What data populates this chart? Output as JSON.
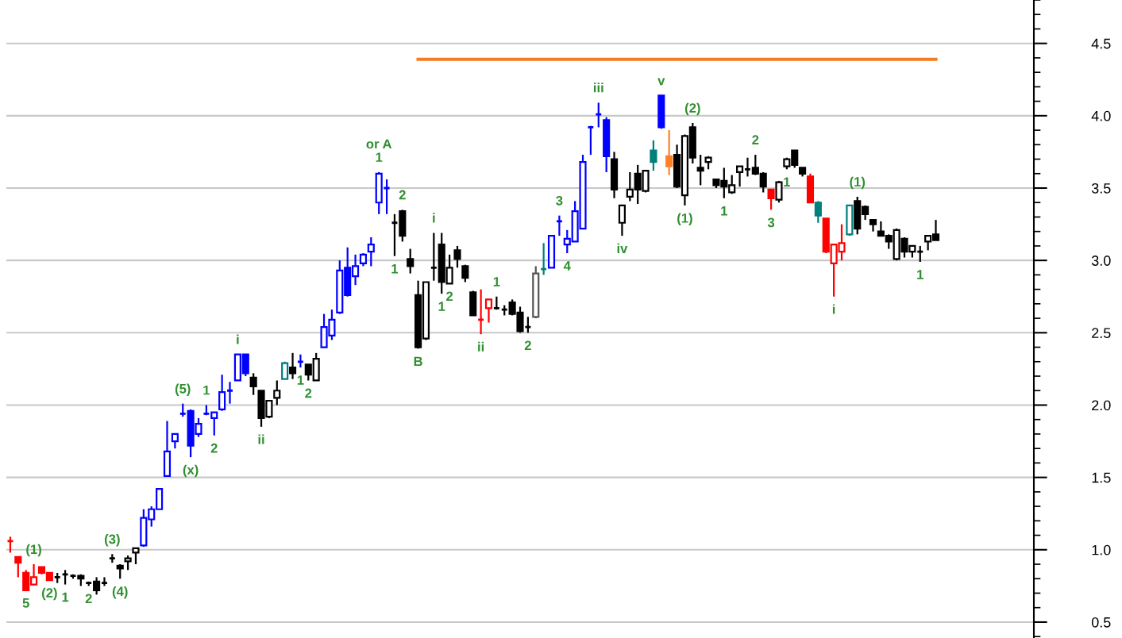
{
  "chart_data": {
    "type": "candlestick",
    "categories": [
      null,
      null,
      null,
      null,
      null,
      null,
      null,
      null,
      null,
      null,
      null,
      null,
      null,
      null,
      null,
      null,
      null,
      null,
      null,
      null,
      null,
      null,
      null,
      null,
      null,
      null,
      null,
      null,
      null,
      null,
      null,
      null,
      null,
      null,
      null,
      null,
      null,
      null,
      null,
      null,
      null,
      null,
      null,
      null,
      null,
      null,
      null,
      null,
      null,
      null,
      null,
      null,
      null,
      null,
      null,
      null,
      null,
      null,
      null,
      null,
      null,
      null,
      null,
      null,
      null,
      null,
      null,
      null,
      null,
      null,
      null,
      null,
      null,
      null,
      null,
      null,
      null,
      null,
      null,
      null,
      null,
      null,
      null,
      null,
      null,
      null,
      null,
      null,
      null,
      null,
      null,
      null,
      null,
      null,
      null,
      null,
      null,
      null,
      null,
      null,
      null,
      null,
      null,
      null,
      null,
      null,
      null,
      null,
      null,
      null,
      null,
      null,
      null,
      null,
      null,
      null,
      null,
      null,
      null,
      null,
      null,
      null,
      null,
      null,
      null,
      null,
      null,
      null,
      null,
      null,
      null
    ],
    "ohlc": [
      [
        1.06,
        1.09,
        0.98,
        1.06
      ],
      [
        0.95,
        0.95,
        0.81,
        0.91
      ],
      [
        0.84,
        0.86,
        0.72,
        0.72
      ],
      [
        0.76,
        0.9,
        0.76,
        0.81
      ],
      [
        0.88,
        0.88,
        0.83,
        0.84
      ],
      [
        0.84,
        0.84,
        0.79,
        0.79
      ],
      [
        0.81,
        0.84,
        0.77,
        0.81
      ],
      [
        0.83,
        0.86,
        0.76,
        0.83
      ],
      [
        0.82,
        0.83,
        0.8,
        0.82
      ],
      [
        0.82,
        0.83,
        0.75,
        0.8
      ],
      [
        0.77,
        0.78,
        0.75,
        0.77
      ],
      [
        0.78,
        0.81,
        0.69,
        0.72
      ],
      [
        0.77,
        0.81,
        0.75,
        0.77
      ],
      [
        0.94,
        0.97,
        0.91,
        0.94
      ],
      [
        0.89,
        0.9,
        0.8,
        0.87
      ],
      [
        0.92,
        0.96,
        0.86,
        0.94
      ],
      [
        0.98,
        1.01,
        0.9,
        1.01
      ],
      [
        1.03,
        1.28,
        1.02,
        1.22
      ],
      [
        1.21,
        1.3,
        1.16,
        1.28
      ],
      [
        1.28,
        1.42,
        1.28,
        1.42
      ],
      [
        1.51,
        1.89,
        1.51,
        1.68
      ],
      [
        1.75,
        1.8,
        1.7,
        1.8
      ],
      [
        1.94,
        2.01,
        1.92,
        1.94
      ],
      [
        1.96,
        1.97,
        1.64,
        1.72
      ],
      [
        1.8,
        1.91,
        1.78,
        1.87
      ],
      [
        1.94,
        2.0,
        1.93,
        1.94
      ],
      [
        1.91,
        1.95,
        1.79,
        1.95
      ],
      [
        1.97,
        2.21,
        1.96,
        2.09
      ],
      [
        2.1,
        2.16,
        2.01,
        2.1
      ],
      [
        2.17,
        2.35,
        2.17,
        2.35
      ],
      [
        2.35,
        2.35,
        2.2,
        2.22
      ],
      [
        2.19,
        2.22,
        2.07,
        2.13
      ],
      [
        2.1,
        2.1,
        1.85,
        1.91
      ],
      [
        1.92,
        2.03,
        1.91,
        2.03
      ],
      [
        2.05,
        2.17,
        2.0,
        2.1
      ],
      [
        2.18,
        2.3,
        2.18,
        2.29
      ],
      [
        2.26,
        2.36,
        2.18,
        2.22
      ],
      [
        2.3,
        2.35,
        2.26,
        2.3
      ],
      [
        2.28,
        2.28,
        2.17,
        2.21
      ],
      [
        2.17,
        2.36,
        2.17,
        2.32
      ],
      [
        2.4,
        2.63,
        2.4,
        2.54
      ],
      [
        2.48,
        2.66,
        2.45,
        2.59
      ],
      [
        2.64,
        3.0,
        2.63,
        2.93
      ],
      [
        2.95,
        3.09,
        2.75,
        2.76
      ],
      [
        2.89,
        3.04,
        2.83,
        2.96
      ],
      [
        2.98,
        3.05,
        2.96,
        3.04
      ],
      [
        3.06,
        3.16,
        2.96,
        3.11
      ],
      [
        3.4,
        3.61,
        3.32,
        3.6
      ],
      [
        3.5,
        3.56,
        3.32,
        3.5
      ],
      [
        3.26,
        3.32,
        3.03,
        3.26
      ],
      [
        3.34,
        3.35,
        3.13,
        3.17
      ],
      [
        3.01,
        3.08,
        2.91,
        2.96
      ],
      [
        2.76,
        2.86,
        2.39,
        2.4
      ],
      [
        2.46,
        2.85,
        2.45,
        2.85
      ],
      [
        2.95,
        3.19,
        2.86,
        2.95
      ],
      [
        3.11,
        3.19,
        2.77,
        2.85
      ],
      [
        2.84,
        3.04,
        2.84,
        2.95
      ],
      [
        3.07,
        3.1,
        2.95,
        3.01
      ],
      [
        2.96,
        2.97,
        2.85,
        2.88
      ],
      [
        2.78,
        2.79,
        2.62,
        2.62
      ],
      [
        2.59,
        2.8,
        2.49,
        2.59
      ],
      [
        2.67,
        2.73,
        2.57,
        2.73
      ],
      [
        2.67,
        2.75,
        2.66,
        2.67
      ],
      [
        2.66,
        2.69,
        2.62,
        2.66
      ],
      [
        2.71,
        2.73,
        2.62,
        2.63
      ],
      [
        2.64,
        2.68,
        2.5,
        2.51
      ],
      [
        2.54,
        2.61,
        2.5,
        2.54
      ],
      [
        2.61,
        2.96,
        2.6,
        2.91
      ],
      [
        2.94,
        3.12,
        2.9,
        2.94
      ],
      [
        2.95,
        3.17,
        2.95,
        3.17
      ],
      [
        3.27,
        3.31,
        3.17,
        3.27
      ],
      [
        3.11,
        3.21,
        3.05,
        3.15
      ],
      [
        3.13,
        3.41,
        3.13,
        3.34
      ],
      [
        3.22,
        3.73,
        3.22,
        3.68
      ],
      [
        3.92,
        3.93,
        3.73,
        3.92
      ],
      [
        4.01,
        4.09,
        3.92,
        4.01
      ],
      [
        3.97,
        3.99,
        3.61,
        3.72
      ],
      [
        3.7,
        3.75,
        3.43,
        3.49
      ],
      [
        3.26,
        3.38,
        3.17,
        3.38
      ],
      [
        3.44,
        3.61,
        3.41,
        3.49
      ],
      [
        3.6,
        3.66,
        3.39,
        3.49
      ],
      [
        3.48,
        3.62,
        3.47,
        3.62
      ],
      [
        3.76,
        3.83,
        3.62,
        3.68
      ],
      [
        4.14,
        4.14,
        3.91,
        3.92
      ],
      [
        3.72,
        3.9,
        3.59,
        3.65
      ],
      [
        3.73,
        3.8,
        3.5,
        3.51
      ],
      [
        3.45,
        3.87,
        3.38,
        3.86
      ],
      [
        3.92,
        3.95,
        3.67,
        3.71
      ],
      [
        3.64,
        3.73,
        3.52,
        3.62
      ],
      [
        3.68,
        3.72,
        3.63,
        3.71
      ],
      [
        3.56,
        3.56,
        3.5,
        3.52
      ],
      [
        3.55,
        3.64,
        3.43,
        3.51
      ],
      [
        3.47,
        3.59,
        3.46,
        3.52
      ],
      [
        3.61,
        3.65,
        3.51,
        3.65
      ],
      [
        3.63,
        3.71,
        3.58,
        3.63
      ],
      [
        3.64,
        3.73,
        3.59,
        3.6
      ],
      [
        3.6,
        3.61,
        3.47,
        3.51
      ],
      [
        3.49,
        3.49,
        3.35,
        3.43
      ],
      [
        3.42,
        3.55,
        3.4,
        3.54
      ],
      [
        3.65,
        3.71,
        3.63,
        3.7
      ],
      [
        3.76,
        3.76,
        3.64,
        3.66
      ],
      [
        3.64,
        3.64,
        3.58,
        3.6
      ],
      [
        3.58,
        3.6,
        3.4,
        3.4
      ],
      [
        3.4,
        3.41,
        3.26,
        3.31
      ],
      [
        3.29,
        3.29,
        3.05,
        3.06
      ],
      [
        2.98,
        3.11,
        2.75,
        3.11
      ],
      [
        3.06,
        3.25,
        3.0,
        3.12
      ],
      [
        3.18,
        3.38,
        3.17,
        3.38
      ],
      [
        3.41,
        3.44,
        3.18,
        3.22
      ],
      [
        3.37,
        3.38,
        3.28,
        3.32
      ],
      [
        3.28,
        3.28,
        3.2,
        3.25
      ],
      [
        3.2,
        3.27,
        3.17,
        3.17
      ],
      [
        3.17,
        3.18,
        3.08,
        3.13
      ],
      [
        3.01,
        3.22,
        3.0,
        3.21
      ],
      [
        3.15,
        3.16,
        3.02,
        3.06
      ],
      [
        3.06,
        3.1,
        3.02,
        3.1
      ],
      [
        3.06,
        3.1,
        2.99,
        3.06
      ],
      [
        3.13,
        3.17,
        3.07,
        3.17
      ],
      [
        3.18,
        3.28,
        3.14,
        3.14
      ],
      null,
      null,
      null,
      null,
      null,
      null,
      null,
      null,
      null,
      null,
      null,
      null
    ],
    "colors": [
      "#ff0000",
      "#ff0000",
      "#ff0000",
      "#ff0000",
      "#ff0000",
      "#ff0000",
      "#000000",
      "#000000",
      "#000000",
      "#000000",
      "#000000",
      "#000000",
      "#000000",
      "#000000",
      "#000000",
      "#000000",
      "#000000",
      "#0000ff",
      "#0000ff",
      "#0000ff",
      "#0000ff",
      "#0000ff",
      "#0000ff",
      "#0000ff",
      "#0000ff",
      "#0000ff",
      "#0000ff",
      "#0000ff",
      "#0000ff",
      "#0000ff",
      "#0000ff",
      "#000000",
      "#000000",
      "#000000",
      "#000000",
      "#007f7f",
      "#000000",
      "#0000ff",
      "#000000",
      "#000000",
      "#0000ff",
      "#0000ff",
      "#0000ff",
      "#0000ff",
      "#0000ff",
      "#0000ff",
      "#0000ff",
      "#0000ff",
      "#0000ff",
      "#000000",
      "#000000",
      "#000000",
      "#000000",
      "#000000",
      "#000000",
      "#000000",
      "#000000",
      "#000000",
      "#000000",
      "#000000",
      "#ff0000",
      "#ff0000",
      "#000000",
      "#000000",
      "#000000",
      "#000000",
      "#000000",
      "#555555",
      "#007f7f",
      "#0000ff",
      "#0000ff",
      "#0000ff",
      "#0000ff",
      "#0000ff",
      "#0000ff",
      "#0000ff",
      "#0000ff",
      "#000000",
      "#000000",
      "#000000",
      "#000000",
      "#000000",
      "#007f7f",
      "#0000ff",
      "#ff7f27",
      "#000000",
      "#000000",
      "#000000",
      "#000000",
      "#000000",
      "#000000",
      "#000000",
      "#000000",
      "#000000",
      "#000000",
      "#000000",
      "#000000",
      "#ff0000",
      "#000000",
      "#000000",
      "#000000",
      "#000000",
      "#ff0000",
      "#007f7f",
      "#ff0000",
      "#ff0000",
      "#ff0000",
      "#007f7f",
      "#000000",
      "#000000",
      "#000000",
      "#000000",
      "#000000",
      "#000000",
      "#000000",
      "#000000",
      "#000000",
      "#000000",
      "#000000",
      null,
      null,
      null,
      null,
      null,
      null,
      null,
      null,
      null,
      null,
      null,
      null
    ],
    "value_labels": [
      null,
      null,
      "5",
      "(1)",
      null,
      "(2)",
      null,
      "1",
      null,
      null,
      "2",
      null,
      null,
      "(3)",
      "(4)",
      null,
      null,
      null,
      null,
      null,
      null,
      null,
      "(5)",
      "(x)",
      null,
      "1",
      "2",
      null,
      null,
      "i",
      null,
      null,
      "ii",
      null,
      null,
      null,
      null,
      "1",
      "2",
      null,
      null,
      null,
      null,
      null,
      null,
      null,
      null,
      "or A\n1",
      null,
      "1",
      "2",
      null,
      "B",
      null,
      "i",
      "1",
      "2",
      null,
      null,
      null,
      "ii",
      null,
      "1",
      null,
      null,
      null,
      "2",
      null,
      null,
      null,
      "3",
      "4",
      null,
      null,
      null,
      "iii",
      null,
      null,
      "iv",
      null,
      null,
      null,
      null,
      "v",
      null,
      null,
      "(1)",
      "(2)",
      null,
      null,
      null,
      "1",
      null,
      null,
      null,
      "2",
      null,
      "3",
      null,
      "1",
      null,
      null,
      null,
      null,
      null,
      "i",
      null,
      null,
      "(1)",
      null,
      null,
      null,
      null,
      null,
      null,
      null,
      "1",
      null,
      null,
      null,
      null,
      null,
      null,
      null,
      null,
      null,
      null,
      null,
      null,
      null,
      null
    ],
    "series": [
      {
        "type": "line",
        "color": "#f47b20",
        "values": [
          null,
          null,
          null,
          null,
          null,
          null,
          null,
          null,
          null,
          null,
          null,
          null,
          null,
          null,
          null,
          null,
          null,
          null,
          null,
          null,
          null,
          null,
          null,
          null,
          null,
          null,
          null,
          null,
          null,
          null,
          null,
          null,
          null,
          null,
          null,
          null,
          null,
          null,
          null,
          null,
          null,
          null,
          null,
          null,
          null,
          null,
          null,
          null,
          null,
          null,
          null,
          null,
          4.39,
          4.39,
          4.39,
          4.39,
          4.39,
          4.39,
          4.39,
          4.39,
          4.39,
          4.39,
          4.39,
          4.39,
          4.39,
          4.39,
          4.39,
          4.39,
          4.39,
          4.39,
          4.39,
          4.39,
          4.39,
          4.39,
          4.39,
          4.39,
          4.39,
          4.39,
          4.39,
          4.39,
          4.39,
          4.39,
          4.39,
          4.39,
          4.39,
          4.39,
          4.39,
          4.39,
          4.39,
          4.39,
          4.39,
          4.39,
          4.39,
          4.39,
          4.39,
          4.39,
          4.39,
          4.39,
          4.39,
          4.39,
          4.39,
          4.39,
          4.39,
          4.39,
          4.39,
          4.39,
          4.39,
          4.39,
          4.39,
          4.39,
          4.39,
          4.39,
          4.39,
          4.39,
          4.39,
          4.39,
          4.39,
          4.39,
          4.39,
          null,
          null,
          null,
          null,
          null,
          null,
          null,
          null,
          null,
          null,
          null,
          null
        ]
      }
    ],
    "ylim": [
      0.39,
      4.8
    ],
    "yticks": [
      {
        "value": 0.5,
        "label": "0.5"
      },
      {
        "value": 1.0,
        "label": "1.0"
      },
      {
        "value": 1.5,
        "label": "1.5"
      },
      {
        "value": 2.0,
        "label": "2.0"
      },
      {
        "value": 2.5,
        "label": "2.5"
      },
      {
        "value": 3.0,
        "label": "3.0"
      },
      {
        "value": 3.5,
        "label": "3.5"
      },
      {
        "value": 4.0,
        "label": "4.0"
      },
      {
        "value": 4.5,
        "label": "4.5"
      }
    ],
    "grid": "y",
    "tick_labels": "y"
  }
}
